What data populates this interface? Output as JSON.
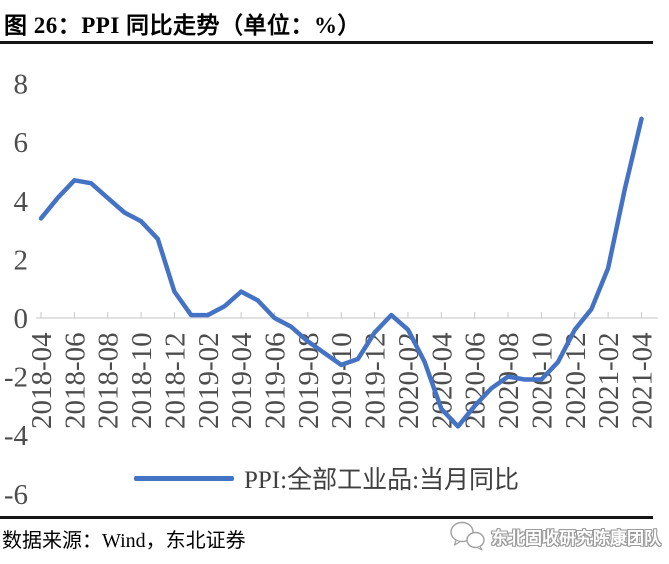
{
  "title": "图 26：PPI 同比走势（单位：%）",
  "source_note": "数据来源：Wind，东北证券",
  "watermark": {
    "label": "东北固收研究陈康团队",
    "icon": "wechat-icon"
  },
  "chart_data": {
    "type": "line",
    "title": "PPI 同比走势（单位：%）",
    "legend_position": "bottom",
    "grid": false,
    "ylim": [
      -6,
      8
    ],
    "ytick_step": 2,
    "x_tick_interval": 2,
    "axis_color": "#D9D9D9",
    "tick_color": "#C8C8C8",
    "label_color": "#4D4D4D",
    "categories": [
      "2018-04",
      "2018-05",
      "2018-06",
      "2018-07",
      "2018-08",
      "2018-09",
      "2018-10",
      "2018-11",
      "2018-12",
      "2019-01",
      "2019-02",
      "2019-03",
      "2019-04",
      "2019-05",
      "2019-06",
      "2019-07",
      "2019-08",
      "2019-09",
      "2019-10",
      "2019-11",
      "2019-12",
      "2020-01",
      "2020-02",
      "2020-03",
      "2020-04",
      "2020-05",
      "2020-06",
      "2020-07",
      "2020-08",
      "2020-09",
      "2020-10",
      "2020-11",
      "2020-12",
      "2021-01",
      "2021-02",
      "2021-03",
      "2021-04"
    ],
    "series": [
      {
        "name": "PPI:全部工业品:当月同比",
        "color": "#4472C4",
        "values": [
          3.4,
          4.1,
          4.7,
          4.6,
          4.1,
          3.6,
          3.3,
          2.7,
          0.9,
          0.1,
          0.1,
          0.4,
          0.9,
          0.6,
          0.0,
          -0.3,
          -0.8,
          -1.2,
          -1.6,
          -1.4,
          -0.5,
          0.1,
          -0.4,
          -1.5,
          -3.1,
          -3.7,
          -3.0,
          -2.4,
          -2.0,
          -2.1,
          -2.1,
          -1.5,
          -0.4,
          0.3,
          1.7,
          4.4,
          6.8
        ]
      }
    ]
  }
}
